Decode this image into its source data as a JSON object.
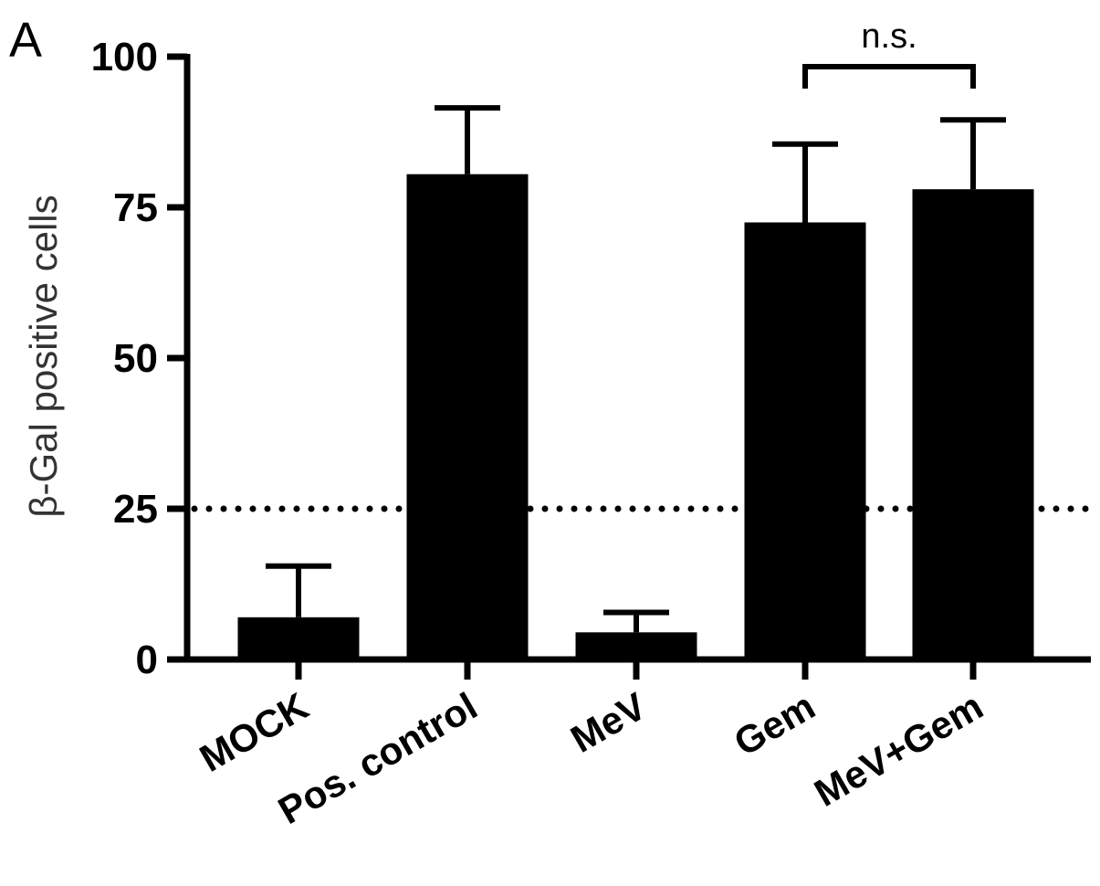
{
  "panel_label": "A",
  "chart_data": {
    "type": "bar",
    "title": "",
    "xlabel": "",
    "ylabel": "β-Gal positive cells",
    "ylim": [
      0,
      100
    ],
    "yticks": [
      0,
      25,
      50,
      75,
      100
    ],
    "categories": [
      "MOCK",
      "Pos. control",
      "MeV",
      "Gem",
      "MeV+Gem"
    ],
    "values": [
      7,
      80.5,
      4.5,
      72.5,
      78
    ],
    "errors": [
      8.5,
      11,
      3.3,
      13,
      11.5
    ],
    "reference_line": {
      "y": 25,
      "style": "dotted"
    },
    "annotations": [
      {
        "text": "n.s.",
        "from": "Gem",
        "to": "MeV+Gem"
      }
    ],
    "bar_color": "#000000",
    "grid": false
  }
}
